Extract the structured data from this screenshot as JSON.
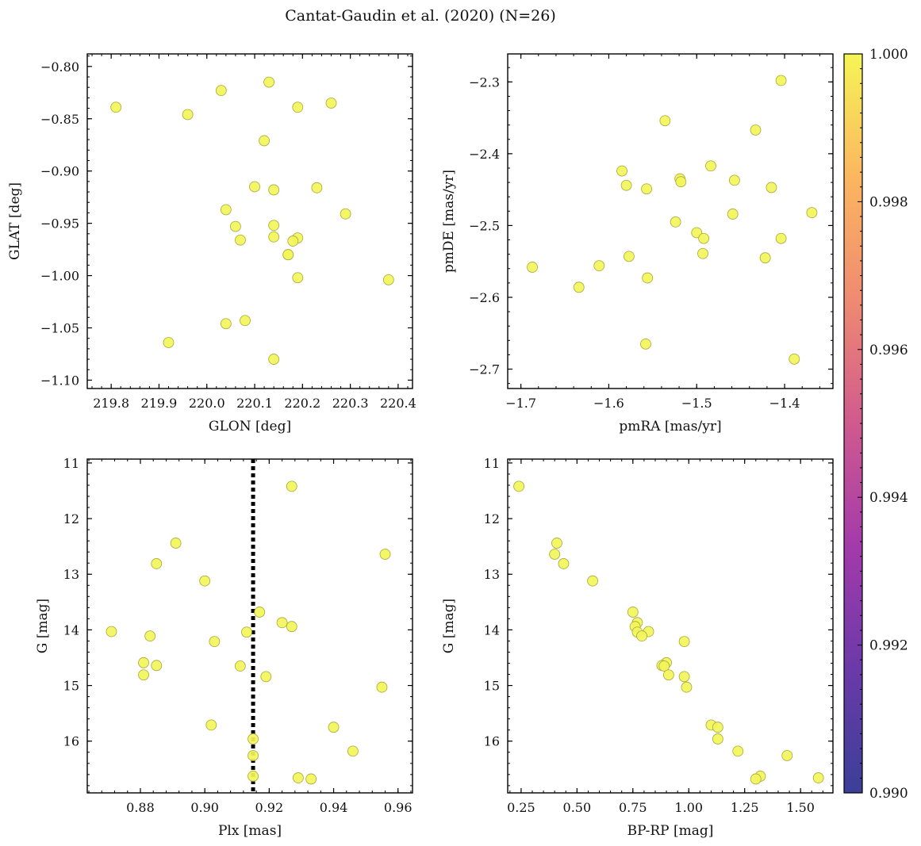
{
  "figure_title": "Cantat-Gaudin et al. (2020) (N=26)",
  "colorbar": {
    "ticks": [
      "0.990",
      "0.992",
      "0.994",
      "0.996",
      "0.998",
      "1.000"
    ],
    "range": [
      0.99,
      1.0
    ],
    "colormap": "plasma",
    "colors": [
      "#3b3f98",
      "#6a3aa8",
      "#a33aab",
      "#cf5a8e",
      "#ef8a72",
      "#fbb65f",
      "#f5f556"
    ]
  },
  "point_style": {
    "fill": "#f2f55a",
    "stroke": "#a8a83a"
  },
  "chart_data": [
    {
      "id": "glon-glat",
      "type": "scatter",
      "title": "",
      "xlabel": "GLON [deg]",
      "ylabel": "GLAT [deg]",
      "xlim": [
        219.75,
        220.43
      ],
      "ylim": [
        -1.108,
        -0.788
      ],
      "y_inverted": false,
      "xticks": [
        219.8,
        219.9,
        220.0,
        220.1,
        220.2,
        220.3,
        220.4
      ],
      "xtick_labels": [
        "219.8",
        "219.9",
        "220.0",
        "220.1",
        "220.2",
        "220.3",
        "220.4"
      ],
      "yticks": [
        -1.1,
        -1.05,
        -1.0,
        -0.95,
        -0.9,
        -0.85,
        -0.8
      ],
      "ytick_labels": [
        "−1.10",
        "−1.05",
        "−1.00",
        "−0.95",
        "−0.90",
        "−0.85",
        "−0.80"
      ],
      "points": [
        [
          219.81,
          -0.839
        ],
        [
          219.96,
          -0.846
        ],
        [
          220.03,
          -0.823
        ],
        [
          220.13,
          -0.815
        ],
        [
          220.19,
          -0.839
        ],
        [
          220.26,
          -0.835
        ],
        [
          220.12,
          -0.871
        ],
        [
          220.1,
          -0.915
        ],
        [
          220.14,
          -0.918
        ],
        [
          220.23,
          -0.916
        ],
        [
          220.04,
          -0.937
        ],
        [
          220.06,
          -0.953
        ],
        [
          220.07,
          -0.966
        ],
        [
          220.14,
          -0.952
        ],
        [
          220.14,
          -0.963
        ],
        [
          220.19,
          -0.964
        ],
        [
          220.18,
          -0.967
        ],
        [
          220.17,
          -0.98
        ],
        [
          220.17,
          -0.98
        ],
        [
          220.19,
          -1.002
        ],
        [
          220.29,
          -0.941
        ],
        [
          220.38,
          -1.004
        ],
        [
          220.04,
          -1.046
        ],
        [
          220.08,
          -1.043
        ],
        [
          219.92,
          -1.064
        ],
        [
          220.14,
          -1.08
        ]
      ]
    },
    {
      "id": "pmra-pmde",
      "type": "scatter",
      "title": "",
      "xlabel": "pmRA [mas/yr]",
      "ylabel": "pmDE [mas/yr]",
      "xlim": [
        -1.715,
        -1.345
      ],
      "ylim": [
        -2.727,
        -2.261
      ],
      "y_inverted": false,
      "xticks": [
        -1.7,
        -1.6,
        -1.5,
        -1.4
      ],
      "xtick_labels": [
        "−1.7",
        "−1.6",
        "−1.5",
        "−1.4"
      ],
      "yticks": [
        -2.7,
        -2.6,
        -2.5,
        -2.4,
        -2.3
      ],
      "ytick_labels": [
        "−2.7",
        "−2.6",
        "−2.5",
        "−2.4",
        "−2.3"
      ],
      "points": [
        [
          -1.404,
          -2.298
        ],
        [
          -1.536,
          -2.354
        ],
        [
          -1.433,
          -2.367
        ],
        [
          -1.585,
          -2.424
        ],
        [
          -1.484,
          -2.417
        ],
        [
          -1.519,
          -2.435
        ],
        [
          -1.518,
          -2.439
        ],
        [
          -1.457,
          -2.437
        ],
        [
          -1.58,
          -2.444
        ],
        [
          -1.557,
          -2.449
        ],
        [
          -1.415,
          -2.447
        ],
        [
          -1.459,
          -2.484
        ],
        [
          -1.369,
          -2.482
        ],
        [
          -1.524,
          -2.495
        ],
        [
          -1.5,
          -2.51
        ],
        [
          -1.492,
          -2.518
        ],
        [
          -1.404,
          -2.518
        ],
        [
          -1.493,
          -2.539
        ],
        [
          -1.577,
          -2.543
        ],
        [
          -1.422,
          -2.545
        ],
        [
          -1.687,
          -2.558
        ],
        [
          -1.611,
          -2.556
        ],
        [
          -1.634,
          -2.586
        ],
        [
          -1.556,
          -2.573
        ],
        [
          -1.558,
          -2.665
        ],
        [
          -1.389,
          -2.686
        ]
      ]
    },
    {
      "id": "plx-g",
      "type": "scatter",
      "title": "",
      "xlabel": "Plx [mas]",
      "ylabel": "G [mag]",
      "xlim": [
        0.8635,
        0.9645
      ],
      "ylim": [
        16.93,
        10.93
      ],
      "y_inverted": true,
      "vline": {
        "x": 0.915,
        "style": "dotted",
        "color": "#000000"
      },
      "xticks": [
        0.88,
        0.9,
        0.92,
        0.94,
        0.96
      ],
      "xtick_labels": [
        "0.88",
        "0.90",
        "0.92",
        "0.94",
        "0.96"
      ],
      "yticks": [
        11,
        12,
        13,
        14,
        15,
        16
      ],
      "ytick_labels": [
        "11",
        "12",
        "13",
        "14",
        "15",
        "16"
      ],
      "points": [
        [
          0.927,
          11.42
        ],
        [
          0.891,
          12.44
        ],
        [
          0.956,
          12.64
        ],
        [
          0.885,
          12.81
        ],
        [
          0.9,
          13.12
        ],
        [
          0.917,
          13.68
        ],
        [
          0.924,
          13.87
        ],
        [
          0.927,
          13.94
        ],
        [
          0.871,
          14.03
        ],
        [
          0.913,
          14.04
        ],
        [
          0.883,
          14.11
        ],
        [
          0.903,
          14.21
        ],
        [
          0.881,
          14.59
        ],
        [
          0.885,
          14.64
        ],
        [
          0.911,
          14.65
        ],
        [
          0.881,
          14.81
        ],
        [
          0.919,
          14.84
        ],
        [
          0.955,
          15.03
        ],
        [
          0.902,
          15.71
        ],
        [
          0.94,
          15.75
        ],
        [
          0.915,
          15.96
        ],
        [
          0.946,
          16.18
        ],
        [
          0.915,
          16.26
        ],
        [
          0.915,
          16.63
        ],
        [
          0.929,
          16.66
        ],
        [
          0.933,
          16.68
        ]
      ]
    },
    {
      "id": "bprp-g",
      "type": "scatter",
      "title": "",
      "xlabel": "BP-RP [mag]",
      "ylabel": "G [mag]",
      "xlim": [
        0.19,
        1.645
      ],
      "ylim": [
        16.93,
        10.93
      ],
      "y_inverted": true,
      "xticks": [
        0.25,
        0.5,
        0.75,
        1.0,
        1.25,
        1.5
      ],
      "xtick_labels": [
        "0.25",
        "0.50",
        "0.75",
        "1.00",
        "1.25",
        "1.50"
      ],
      "yticks": [
        11,
        12,
        13,
        14,
        15,
        16
      ],
      "ytick_labels": [
        "11",
        "12",
        "13",
        "14",
        "15",
        "16"
      ],
      "points": [
        [
          0.24,
          11.42
        ],
        [
          0.41,
          12.44
        ],
        [
          0.4,
          12.64
        ],
        [
          0.44,
          12.81
        ],
        [
          0.57,
          13.12
        ],
        [
          0.75,
          13.68
        ],
        [
          0.77,
          13.87
        ],
        [
          0.76,
          13.94
        ],
        [
          0.82,
          14.03
        ],
        [
          0.77,
          14.04
        ],
        [
          0.79,
          14.11
        ],
        [
          0.98,
          14.21
        ],
        [
          0.9,
          14.59
        ],
        [
          0.88,
          14.64
        ],
        [
          0.89,
          14.65
        ],
        [
          0.91,
          14.81
        ],
        [
          0.98,
          14.84
        ],
        [
          0.99,
          15.03
        ],
        [
          1.1,
          15.71
        ],
        [
          1.13,
          15.75
        ],
        [
          1.13,
          15.96
        ],
        [
          1.22,
          16.18
        ],
        [
          1.44,
          16.26
        ],
        [
          1.32,
          16.63
        ],
        [
          1.58,
          16.66
        ],
        [
          1.3,
          16.68
        ]
      ]
    }
  ]
}
